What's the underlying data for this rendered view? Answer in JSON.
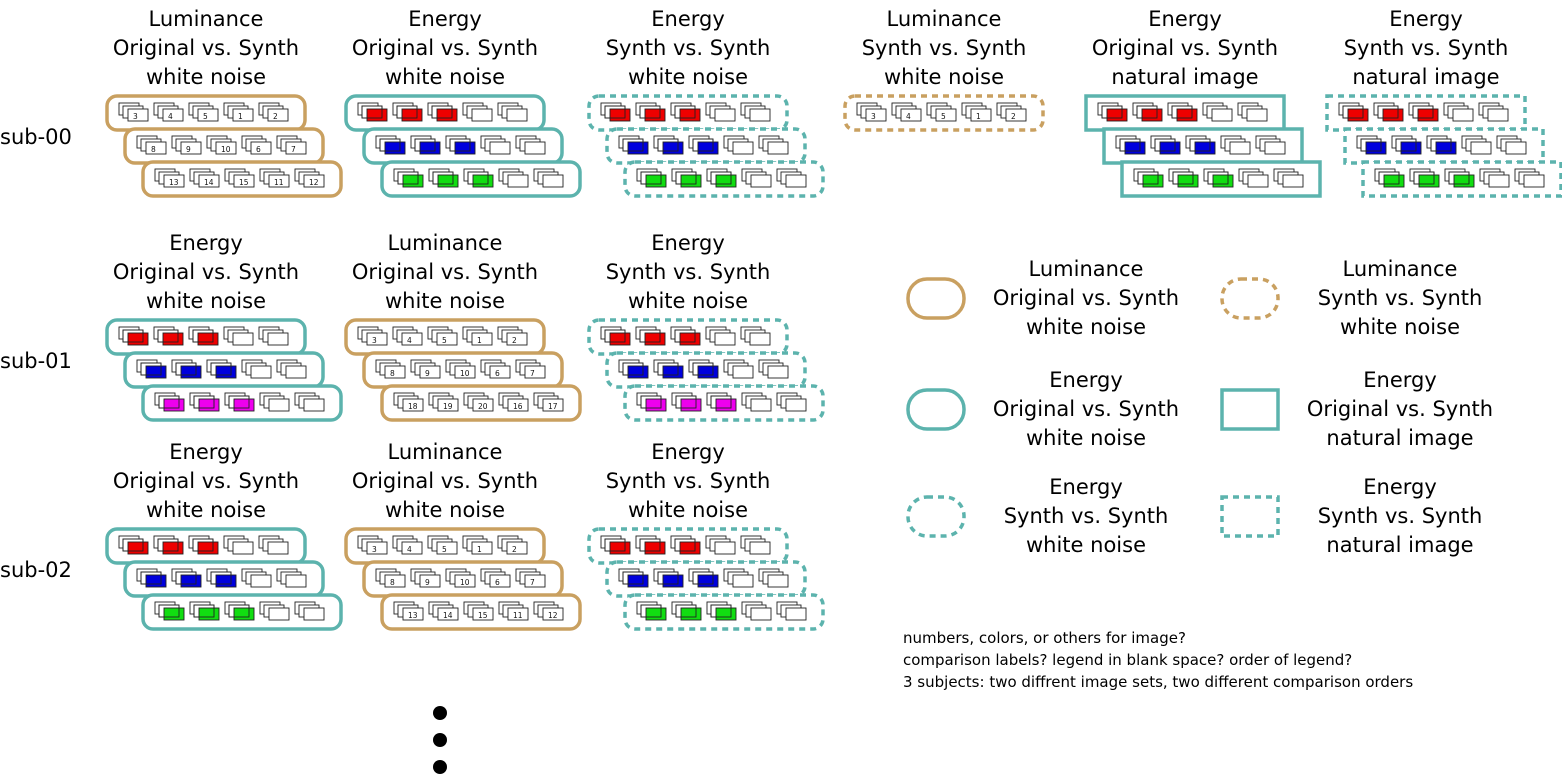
{
  "colors": {
    "luminance": "#c9a060",
    "energy": "#5cb3ad",
    "red": "#ee0000",
    "blue": "#0000dd",
    "green": "#11dd11",
    "magenta": "#ee00ee"
  },
  "subjects": [
    {
      "label": "sub-00",
      "blocks": [
        {
          "title": [
            "Luminance",
            "Original vs. Synth",
            "white noise"
          ],
          "measure": "luminance",
          "style": "rounded-solid",
          "numbers": [
            [
              "3",
              "4",
              "5",
              "1",
              "2"
            ],
            [
              "8",
              "9",
              "10",
              "6",
              "7"
            ],
            [
              "13",
              "14",
              "15",
              "11",
              "12"
            ]
          ]
        },
        {
          "title": [
            "Energy",
            "Original vs. Synth",
            "white noise"
          ],
          "measure": "energy",
          "style": "rounded-solid",
          "fills": [
            "red",
            "blue",
            "green"
          ]
        },
        {
          "title": [
            "Energy",
            "Synth vs. Synth",
            "white noise"
          ],
          "measure": "energy",
          "style": "rounded-dashed",
          "fills": [
            "red",
            "blue",
            "green"
          ]
        },
        {
          "title": [
            "Luminance",
            "Synth vs. Synth",
            "white noise"
          ],
          "measure": "luminance",
          "style": "rounded-dashed",
          "numbers": [
            [
              "3",
              "4",
              "5",
              "1",
              "2"
            ]
          ]
        },
        {
          "title": [
            "Energy",
            "Original vs. Synth",
            "natural image"
          ],
          "measure": "energy",
          "style": "square-solid",
          "fills": [
            "red",
            "blue",
            "green"
          ]
        },
        {
          "title": [
            "Energy",
            "Synth vs. Synth",
            "natural image"
          ],
          "measure": "energy",
          "style": "square-dashed",
          "fills": [
            "red",
            "blue",
            "green"
          ]
        }
      ]
    },
    {
      "label": "sub-01",
      "blocks": [
        {
          "title": [
            "Energy",
            "Original vs. Synth",
            "white noise"
          ],
          "measure": "energy",
          "style": "rounded-solid",
          "fills": [
            "red",
            "blue",
            "magenta"
          ]
        },
        {
          "title": [
            "Luminance",
            "Original vs. Synth",
            "white noise"
          ],
          "measure": "luminance",
          "style": "rounded-solid",
          "numbers": [
            [
              "3",
              "4",
              "5",
              "1",
              "2"
            ],
            [
              "8",
              "9",
              "10",
              "6",
              "7"
            ],
            [
              "18",
              "19",
              "20",
              "16",
              "17"
            ]
          ]
        },
        {
          "title": [
            "Energy",
            "Synth vs. Synth",
            "white noise"
          ],
          "measure": "energy",
          "style": "rounded-dashed",
          "fills": [
            "red",
            "blue",
            "magenta"
          ]
        }
      ]
    },
    {
      "label": "sub-02",
      "blocks": [
        {
          "title": [
            "Energy",
            "Original vs. Synth",
            "white noise"
          ],
          "measure": "energy",
          "style": "rounded-solid",
          "fills": [
            "red",
            "blue",
            "green"
          ]
        },
        {
          "title": [
            "Luminance",
            "Original vs. Synth",
            "white noise"
          ],
          "measure": "luminance",
          "style": "rounded-solid",
          "numbers": [
            [
              "3",
              "4",
              "5",
              "1",
              "2"
            ],
            [
              "8",
              "9",
              "10",
              "6",
              "7"
            ],
            [
              "13",
              "14",
              "15",
              "11",
              "12"
            ]
          ]
        },
        {
          "title": [
            "Energy",
            "Synth vs. Synth",
            "white noise"
          ],
          "measure": "energy",
          "style": "rounded-dashed",
          "fills": [
            "red",
            "blue",
            "green"
          ]
        }
      ]
    }
  ],
  "legend": [
    {
      "lines": [
        "Luminance",
        "Original vs. Synth",
        "white noise"
      ],
      "measure": "luminance",
      "style": "rounded-solid"
    },
    {
      "lines": [
        "Luminance",
        "Synth vs. Synth",
        "white noise"
      ],
      "measure": "luminance",
      "style": "rounded-dashed"
    },
    {
      "lines": [
        "Energy",
        "Original vs. Synth",
        "white noise"
      ],
      "measure": "energy",
      "style": "rounded-solid"
    },
    {
      "lines": [
        "Energy",
        "Original vs. Synth",
        "natural image"
      ],
      "measure": "energy",
      "style": "square-solid"
    },
    {
      "lines": [
        "Energy",
        "Synth vs. Synth",
        "white noise"
      ],
      "measure": "energy",
      "style": "rounded-dashed"
    },
    {
      "lines": [
        "Energy",
        "Synth vs. Synth",
        "natural image"
      ],
      "measure": "energy",
      "style": "square-dashed"
    }
  ],
  "notes": [
    "numbers, colors, or others for image?",
    "comparison labels? legend in blank space? order of legend?",
    "3 subjects: two diffrent image sets, two different comparison orders"
  ]
}
